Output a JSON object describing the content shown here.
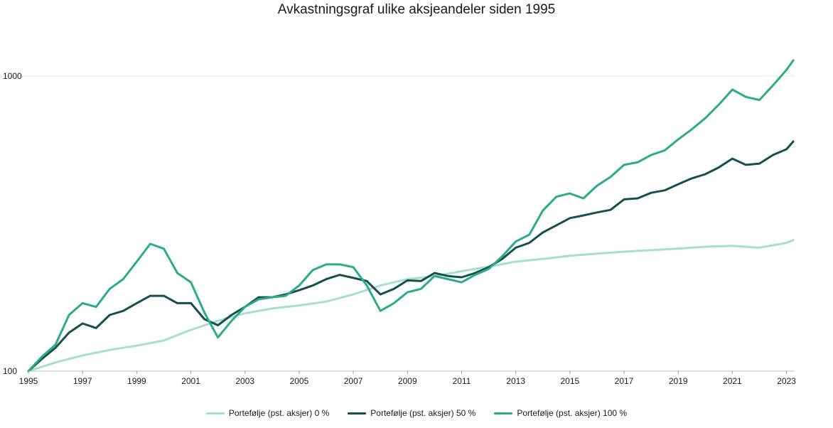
{
  "chart_data": {
    "type": "line",
    "title": "Avkastningsgraf ulike aksjeandeler siden 1995",
    "y_scale": "log",
    "ylim": [
      100,
      1450
    ],
    "y_ticks": [
      100,
      1000
    ],
    "y_tick_labels": [
      "100",
      "1000"
    ],
    "xlim": [
      1995.0,
      2023.3
    ],
    "x_ticks": [
      1995,
      1997,
      1999,
      2001,
      2003,
      2005,
      2007,
      2009,
      2011,
      2013,
      2015,
      2017,
      2019,
      2021,
      2023
    ],
    "x_tick_labels": [
      "1995",
      "1997",
      "1999",
      "2001",
      "2003",
      "2005",
      "2007",
      "2009",
      "2011",
      "2013",
      "2015",
      "2017",
      "2019",
      "2021",
      "2023"
    ],
    "grid": true,
    "legend_position": "bottom-center",
    "series": [
      {
        "name": "Portefølje (pst. aksjer) 0 %",
        "color": "#a6e0cc",
        "x": [
          1995,
          1996,
          1997,
          1998,
          1999,
          2000,
          2001,
          2002,
          2003,
          2004,
          2005,
          2006,
          2007,
          2008,
          2009,
          2010,
          2011,
          2012,
          2013,
          2014,
          2015,
          2016,
          2017,
          2018,
          2019,
          2020,
          2021,
          2022,
          2023,
          2023.25
        ],
        "y": [
          100,
          107,
          113,
          118,
          122,
          127,
          138,
          148,
          157,
          163,
          167,
          172,
          182,
          195,
          205,
          210,
          218,
          226,
          235,
          240,
          246,
          250,
          254,
          257,
          260,
          264,
          266,
          262,
          272,
          278
        ]
      },
      {
        "name": "Portefølje (pst. aksjer) 50 %",
        "color": "#17504a",
        "x": [
          1995,
          1995.5,
          1996,
          1996.5,
          1997,
          1997.5,
          1998,
          1998.5,
          1999,
          1999.5,
          2000,
          2000.5,
          2001,
          2001.5,
          2002,
          2002.5,
          2003,
          2003.5,
          2004,
          2004.5,
          2005,
          2005.5,
          2006,
          2006.5,
          2007,
          2007.5,
          2008,
          2008.5,
          2009,
          2009.5,
          2010,
          2010.5,
          2011,
          2011.5,
          2012,
          2012.5,
          2013,
          2013.5,
          2014,
          2014.5,
          2015,
          2015.5,
          2016,
          2016.5,
          2017,
          2017.5,
          2018,
          2018.5,
          2019,
          2019.5,
          2020,
          2020.5,
          2021,
          2021.5,
          2022,
          2022.5,
          2023,
          2023.25
        ],
        "y": [
          100,
          110,
          120,
          135,
          145,
          140,
          155,
          160,
          170,
          180,
          180,
          170,
          170,
          150,
          143,
          155,
          165,
          178,
          178,
          182,
          188,
          195,
          205,
          212,
          207,
          202,
          182,
          190,
          203,
          202,
          215,
          210,
          208,
          215,
          225,
          240,
          262,
          272,
          295,
          312,
          330,
          337,
          345,
          352,
          382,
          385,
          402,
          410,
          430,
          450,
          465,
          490,
          525,
          500,
          505,
          540,
          565,
          600
        ]
      },
      {
        "name": "Portefølje (pst. aksjer) 100 %",
        "color": "#2aac86",
        "x": [
          1995,
          1995.5,
          1996,
          1996.5,
          1997,
          1997.5,
          1998,
          1998.5,
          1999,
          1999.5,
          2000,
          2000.5,
          2001,
          2001.5,
          2002,
          2002.5,
          2003,
          2003.5,
          2004,
          2004.5,
          2005,
          2005.5,
          2006,
          2006.5,
          2007,
          2007.5,
          2008,
          2008.5,
          2009,
          2009.5,
          2010,
          2010.5,
          2011,
          2011.5,
          2012,
          2012.5,
          2013,
          2013.5,
          2014,
          2014.5,
          2015,
          2015.5,
          2016,
          2016.5,
          2017,
          2017.5,
          2018,
          2018.5,
          2019,
          2019.5,
          2020,
          2020.5,
          2021,
          2021.5,
          2022,
          2022.5,
          2023,
          2023.25
        ],
        "y": [
          100,
          112,
          123,
          155,
          170,
          165,
          190,
          205,
          235,
          270,
          260,
          215,
          200,
          158,
          130,
          148,
          165,
          175,
          178,
          180,
          195,
          220,
          230,
          230,
          225,
          195,
          160,
          170,
          185,
          190,
          210,
          205,
          200,
          212,
          222,
          245,
          275,
          290,
          350,
          390,
          400,
          385,
          425,
          455,
          500,
          510,
          540,
          560,
          610,
          660,
          720,
          800,
          900,
          850,
          830,
          930,
          1050,
          1130
        ]
      }
    ]
  }
}
